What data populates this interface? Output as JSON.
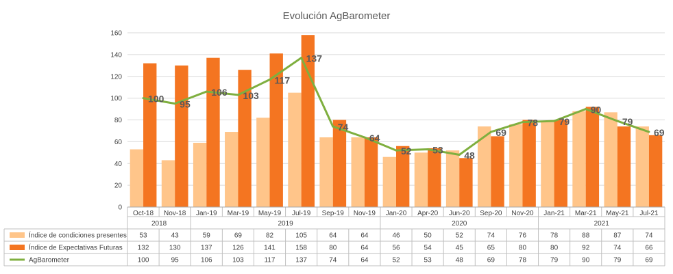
{
  "chart_data": {
    "type": "bar",
    "title": "Evolución AgBarometer",
    "ylim": [
      0,
      160
    ],
    "yticks": [
      0,
      20,
      40,
      60,
      80,
      100,
      120,
      140,
      160
    ],
    "grid": true,
    "legend_placement": "bottom-left (data table)",
    "categories": [
      "Oct-18",
      "Nov-18",
      "Jan-19",
      "Mar-19",
      "May-19",
      "Jul-19",
      "Sep-19",
      "Nov-19",
      "Jan-20",
      "Apr-20",
      "Jun-20",
      "Sep-20",
      "Nov-20",
      "Jan-21",
      "Mar-21",
      "May-21",
      "Jul-21"
    ],
    "year_groups": [
      {
        "label": "2018",
        "count": 2
      },
      {
        "label": "2019",
        "count": 6
      },
      {
        "label": "2020",
        "count": 5
      },
      {
        "label": "2021",
        "count": 4
      }
    ],
    "series": [
      {
        "name": "Índice de condiciones presentes",
        "kind": "bar",
        "color": "#FFC58A",
        "values": [
          53,
          43,
          59,
          69,
          82,
          105,
          64,
          64,
          46,
          50,
          52,
          74,
          76,
          78,
          88,
          87,
          74
        ]
      },
      {
        "name": "Índice de Expectativas Futuras",
        "kind": "bar",
        "color": "#F47521",
        "values": [
          132,
          130,
          137,
          126,
          141,
          158,
          80,
          64,
          56,
          54,
          45,
          65,
          80,
          80,
          92,
          74,
          66
        ]
      },
      {
        "name": "AgBarometer",
        "kind": "line",
        "color": "#7FAF3F",
        "values": [
          100,
          95,
          106,
          103,
          117,
          137,
          74,
          64,
          52,
          53,
          48,
          69,
          78,
          79,
          90,
          79,
          69
        ]
      }
    ]
  }
}
